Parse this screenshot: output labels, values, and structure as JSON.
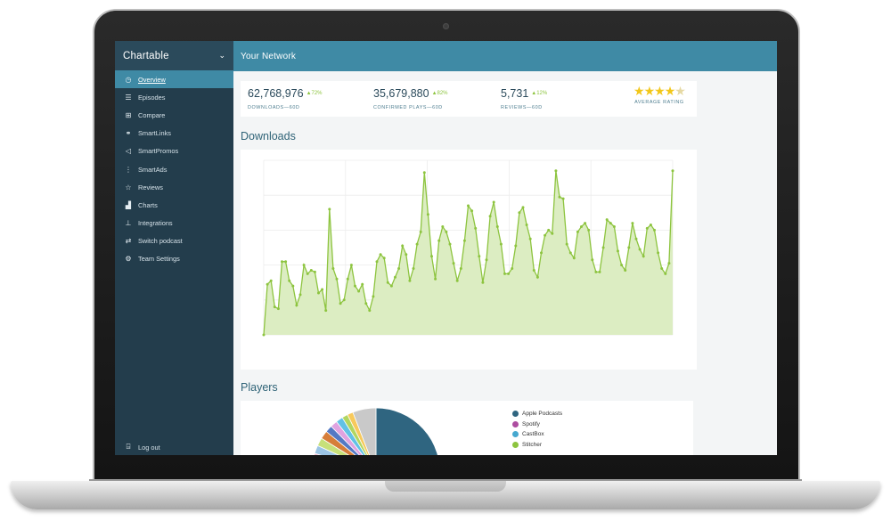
{
  "sidebar": {
    "brand": "Chartable",
    "items": [
      {
        "label": "Overview",
        "icon": "clock-icon"
      },
      {
        "label": "Episodes",
        "icon": "list-icon"
      },
      {
        "label": "Compare",
        "icon": "compare-icon"
      },
      {
        "label": "SmartLinks",
        "icon": "link-icon"
      },
      {
        "label": "SmartPromos",
        "icon": "megaphone-icon"
      },
      {
        "label": "SmartAds",
        "icon": "ads-icon"
      },
      {
        "label": "Reviews",
        "icon": "star-icon"
      },
      {
        "label": "Charts",
        "icon": "chart-icon"
      },
      {
        "label": "Integrations",
        "icon": "integrations-icon"
      },
      {
        "label": "Switch podcast",
        "icon": "switch-icon"
      },
      {
        "label": "Team Settings",
        "icon": "gear-icon"
      }
    ],
    "logout": "Log out"
  },
  "header": {
    "title": "Your Network"
  },
  "stats": {
    "downloads": {
      "value": "62,768,976",
      "change": "▲72%",
      "label": "DOWNLOADS—60D"
    },
    "plays": {
      "value": "35,679,880",
      "change": "▲82%",
      "label": "CONFIRMED PLAYS—60D"
    },
    "reviews": {
      "value": "5,731",
      "change": "▲12%",
      "label": "REVIEWS—60D"
    },
    "rating": {
      "stars_value": 4.5,
      "label": "AVERAGE RATING"
    }
  },
  "downloads_title": "Downloads",
  "players_title": "Players",
  "colors": {
    "accent": "#3f8aa5",
    "sidebar": "#233d4c",
    "line": "#8dc43f",
    "fill": "#dcedc2"
  },
  "chart_data": [
    {
      "type": "area",
      "title": "Downloads",
      "x": [
        1,
        2,
        3,
        4,
        5,
        6,
        7,
        8,
        9,
        10,
        11,
        12,
        13,
        14,
        15,
        16,
        17,
        18,
        19,
        20,
        21,
        22,
        23,
        24,
        25,
        26,
        27,
        28,
        29,
        30,
        31,
        32,
        33,
        34,
        35,
        36,
        37,
        38,
        39,
        40,
        41,
        42,
        43,
        44,
        45,
        46,
        47,
        48,
        49,
        50,
        51,
        52,
        53,
        54,
        55,
        56,
        57,
        58,
        59,
        60,
        61,
        62,
        63,
        64,
        65,
        66,
        67,
        68,
        69,
        70,
        71,
        72,
        73,
        74,
        75,
        76,
        77,
        78,
        79,
        80,
        81,
        82,
        83,
        84,
        85,
        86,
        87,
        88,
        89,
        90,
        91,
        92,
        93,
        94,
        95,
        96,
        97,
        98,
        99,
        100,
        101,
        102,
        103,
        104,
        105,
        106,
        107,
        108,
        109,
        110,
        111,
        112,
        113
      ],
      "values": [
        0,
        29,
        31,
        16,
        15,
        42,
        42,
        31,
        28,
        17,
        23,
        40,
        35,
        37,
        36,
        24,
        26,
        14,
        72,
        38,
        32,
        18,
        20,
        32,
        40,
        28,
        25,
        29,
        18,
        14,
        22,
        42,
        46,
        44,
        30,
        28,
        33,
        38,
        51,
        46,
        31,
        38,
        52,
        59,
        93,
        69,
        45,
        32,
        54,
        62,
        59,
        52,
        41,
        31,
        38,
        54,
        74,
        71,
        61,
        45,
        30,
        43,
        68,
        76,
        62,
        52,
        35,
        35,
        38,
        51,
        70,
        73,
        63,
        55,
        37,
        33,
        47,
        57,
        60,
        58,
        94,
        79,
        78,
        52,
        47,
        44,
        59,
        62,
        64,
        60,
        43,
        36,
        36,
        50,
        66,
        64,
        62,
        48,
        40,
        37,
        50,
        64,
        55,
        49,
        45,
        61,
        63,
        60,
        47,
        38,
        35,
        41,
        94
      ],
      "ylim": [
        0,
        100
      ],
      "grid": true
    },
    {
      "type": "pie",
      "title": "Players",
      "labels": [
        "Apple Podcasts",
        "Spotify",
        "CastBox",
        "Stitcher"
      ],
      "colors": [
        "#2f6580",
        "#ad4da0",
        "#46a8cf",
        "#8dc43f"
      ]
    }
  ]
}
